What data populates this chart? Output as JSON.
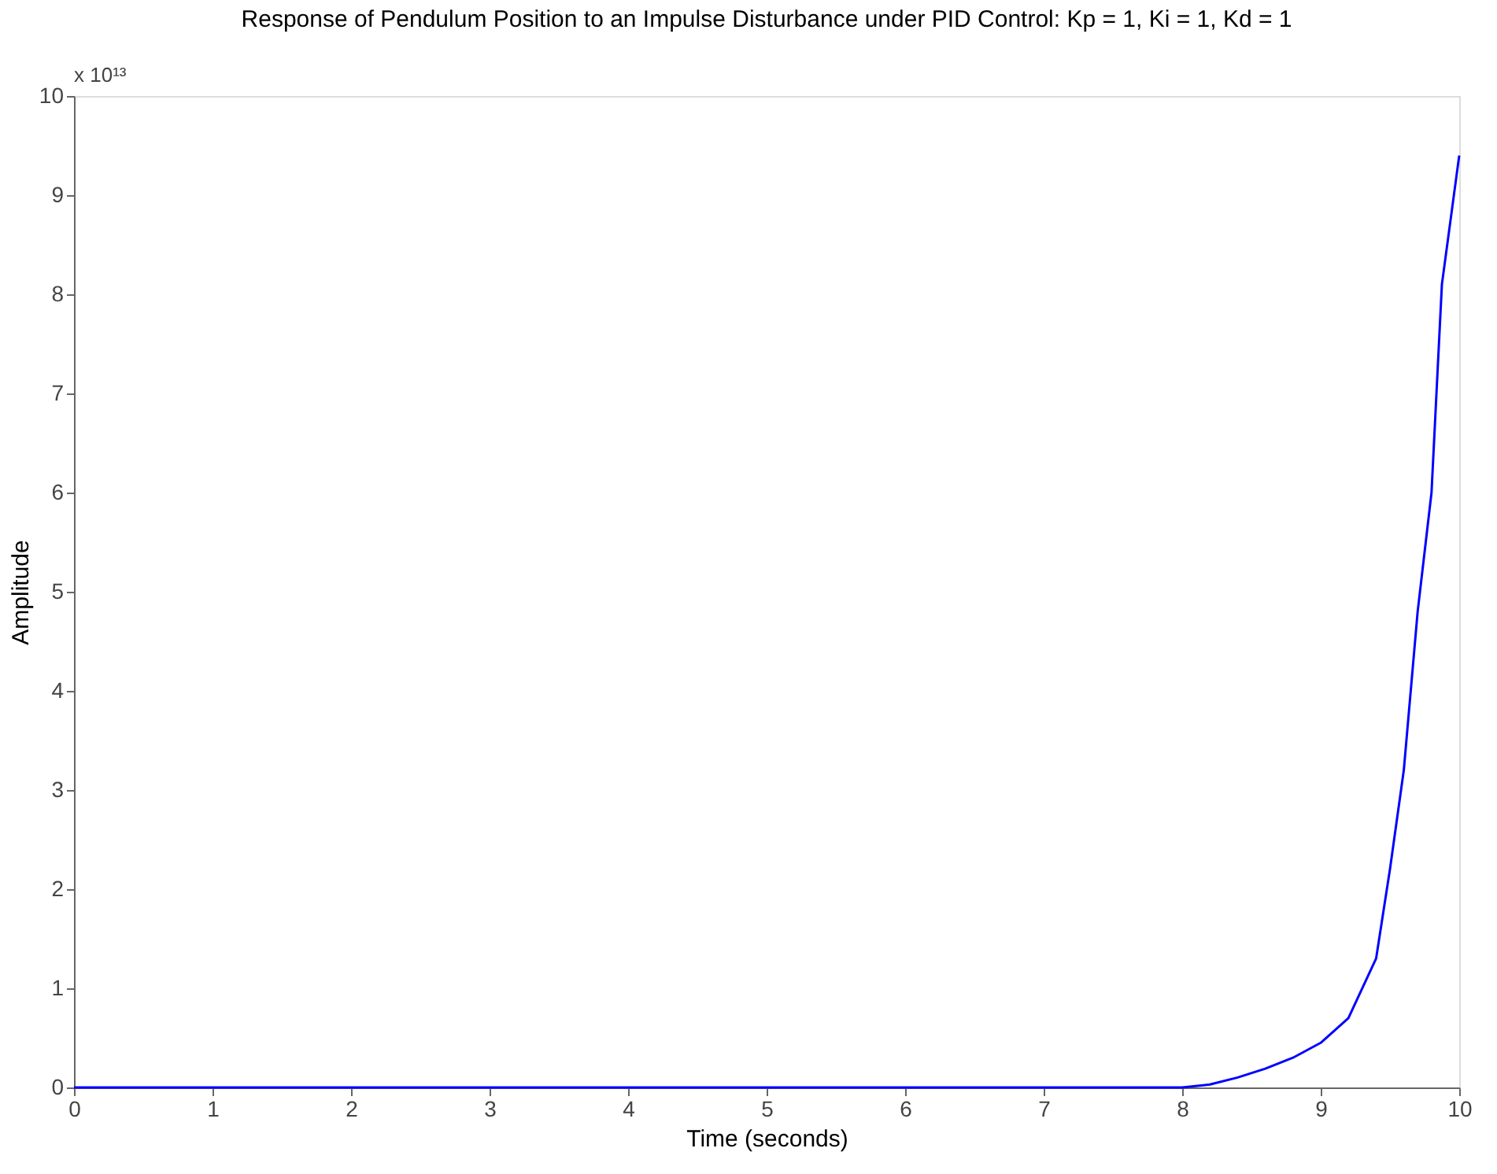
{
  "chart_data": {
    "type": "line",
    "title": "Response of Pendulum Position to an Impulse Disturbance under PID Control: Kp = 1, Ki = 1, Kd = 1",
    "xlabel": "Time (seconds)",
    "ylabel": "Amplitude",
    "annotations": [
      "x 10¹³"
    ],
    "x": [
      0,
      1,
      2,
      3,
      4,
      5,
      6,
      7,
      8,
      8.2,
      8.4,
      8.6,
      8.8,
      9,
      9.2,
      9.4,
      9.5,
      9.6,
      9.7,
      9.8,
      9.875,
      10
    ],
    "series": [
      {
        "color": "#0000ff",
        "values": [
          0,
          0,
          0,
          0,
          0,
          0,
          0,
          0,
          0,
          0.03,
          0.1,
          0.19,
          0.3,
          0.45,
          0.7,
          1.3,
          2.2,
          3.2,
          4.8,
          6.0,
          8.1,
          9.4
        ]
      }
    ],
    "xlim": [
      0,
      10
    ],
    "ylim": [
      0,
      10
    ],
    "xticks": [
      0,
      1,
      2,
      3,
      4,
      5,
      6,
      7,
      8,
      9,
      10
    ],
    "yticks": [
      0,
      1,
      2,
      3,
      4,
      5,
      6,
      7,
      8,
      9,
      10
    ],
    "grid": false,
    "marker": "none",
    "line_style": "solid"
  }
}
